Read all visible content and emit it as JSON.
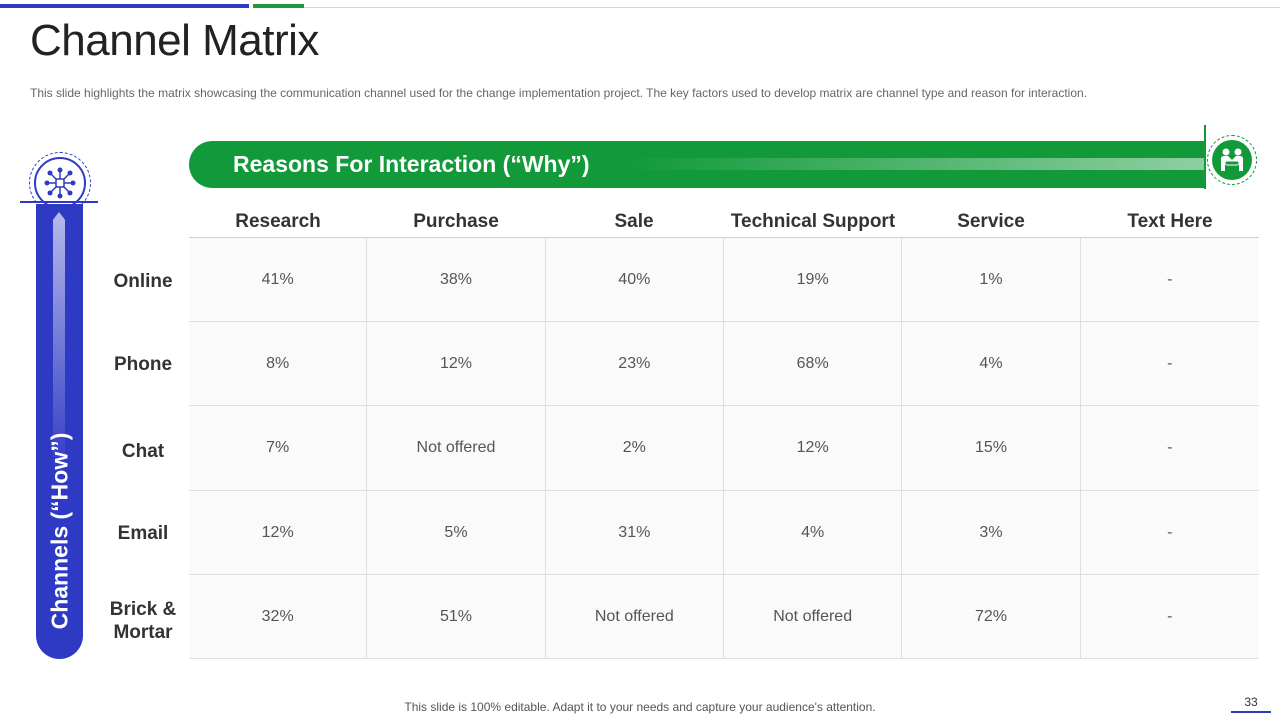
{
  "slide": {
    "title": "Channel Matrix",
    "subtitle": "This slide highlights the matrix showcasing the communication channel used for the change implementation  project. The key factors used to develop  matrix are channel type and reason for interaction.",
    "why_label": "Reasons For Interaction (“Why”)",
    "how_label": "Channels (“How”)",
    "footer": "This slide is 100% editable. Adapt it to your needs and capture your audience's attention.",
    "page_number": "33"
  },
  "icons": {
    "why": "handshake-icon",
    "how": "network-hub-icon"
  },
  "colors": {
    "blue": "#2f3ac4",
    "green": "#129a3a"
  },
  "matrix": {
    "columns": [
      "Research",
      "Purchase",
      "Sale",
      "Technical Support",
      "Service",
      "Text Here"
    ],
    "rows": [
      {
        "label": "Online",
        "cells": [
          "41%",
          "38%",
          "40%",
          "19%",
          "1%",
          "-"
        ]
      },
      {
        "label": "Phone",
        "cells": [
          "8%",
          "12%",
          "23%",
          "68%",
          "4%",
          "-"
        ]
      },
      {
        "label": "Chat",
        "cells": [
          "7%",
          "Not offered",
          "2%",
          "12%",
          "15%",
          "-"
        ]
      },
      {
        "label": "Email",
        "cells": [
          "12%",
          "5%",
          "31%",
          "4%",
          "3%",
          "-"
        ]
      },
      {
        "label": "Brick & Mortar",
        "cells": [
          "32%",
          "51%",
          "Not offered",
          "Not offered",
          "72%",
          "-"
        ]
      }
    ]
  }
}
